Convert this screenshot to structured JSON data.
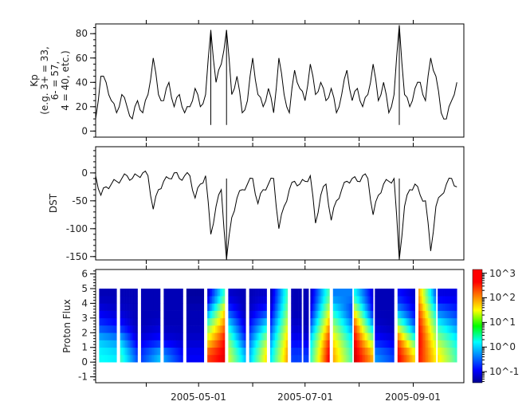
{
  "chart_data": [
    {
      "type": "line",
      "ylabel_lines": [
        "Kp",
        "(e.g. 3+ = 33,",
        "6- = 57,",
        "4 = 40, etc.)"
      ],
      "ylim": [
        -5,
        88
      ],
      "yticks": [
        0,
        20,
        40,
        60,
        80
      ],
      "x_start": "2005-03-03",
      "x_step_days": 3,
      "values": [
        10,
        45,
        40,
        25,
        15,
        30,
        20,
        10,
        25,
        15,
        30,
        60,
        30,
        25,
        40,
        20,
        30,
        15,
        20,
        35,
        20,
        30,
        83,
        40,
        55,
        83,
        30,
        45,
        15,
        25,
        60,
        30,
        20,
        35,
        15,
        60,
        30,
        15,
        50,
        35,
        25,
        55,
        30,
        40,
        25,
        35,
        15,
        30,
        50,
        25,
        35,
        20,
        30,
        55,
        25,
        40,
        15,
        30,
        87,
        30,
        20,
        35,
        40,
        25,
        60,
        45,
        15,
        10,
        25,
        40
      ]
    },
    {
      "type": "line",
      "ylabel": "DST",
      "ylim": [
        -156,
        47
      ],
      "yticks": [
        0,
        -50,
        -100,
        -150
      ],
      "x_start": "2005-03-03",
      "x_step_days": 3,
      "values": [
        -5,
        -40,
        -25,
        -20,
        -15,
        -10,
        -5,
        -10,
        -5,
        0,
        -5,
        -65,
        -30,
        -15,
        -10,
        0,
        -10,
        -5,
        -5,
        -45,
        -20,
        -5,
        -110,
        -60,
        -30,
        -155,
        -80,
        -45,
        -30,
        -20,
        -10,
        -55,
        -30,
        -20,
        -10,
        -100,
        -60,
        -30,
        -15,
        -20,
        -15,
        -5,
        -90,
        -40,
        -20,
        -85,
        -50,
        -30,
        -15,
        -10,
        -15,
        -5,
        -10,
        -75,
        -40,
        -20,
        -15,
        -10,
        -155,
        -60,
        -30,
        -20,
        -40,
        -50,
        -140,
        -60,
        -40,
        -20,
        -10,
        -25
      ]
    },
    {
      "type": "heatmap",
      "ylabel": "Proton Flux",
      "ylim": [
        -1.4,
        6.3
      ],
      "yticks": [
        -1,
        0,
        1,
        2,
        3,
        4,
        5,
        6
      ],
      "y_bands": [
        [
          0,
          1
        ],
        [
          1,
          2
        ],
        [
          2,
          3
        ],
        [
          3,
          4
        ],
        [
          4,
          5
        ]
      ],
      "colorscale": "jet",
      "z_log10_range": [
        -1.45,
        3.15
      ],
      "colorbar_ticks": [
        "10^-1",
        "10^0",
        "10^1",
        "10^2",
        "10^3"
      ],
      "colorbar_tick_values": [
        -1,
        0,
        1,
        2,
        3
      ],
      "segments": [
        {
          "start": "2005-03-05",
          "end": "2005-03-15",
          "log_flux_start": [
            0.3,
            0.0,
            -0.6,
            -1,
            -1.2
          ],
          "log_flux_end": [
            0.2,
            -0.2,
            -0.8,
            -1.1,
            -1.2
          ]
        },
        {
          "start": "2005-03-17",
          "end": "2005-03-27",
          "log_flux_start": [
            0.5,
            0,
            -0.8,
            -1.1,
            -1.2
          ],
          "log_flux_end": [
            -0.5,
            -1,
            -1.2,
            -1.2,
            -1.2
          ]
        },
        {
          "start": "2005-03-29",
          "end": "2005-04-09",
          "log_flux_start": [
            -0.6,
            -1.0,
            -1.2,
            -1.2,
            -1.2
          ],
          "log_flux_end": [
            0,
            -0.8,
            -1.1,
            -1.2,
            -1.2
          ]
        },
        {
          "start": "2005-04-11",
          "end": "2005-04-22",
          "log_flux_start": [
            -0.2,
            -1,
            -1.2,
            -1.2,
            -1.2
          ],
          "log_flux_end": [
            -0.8,
            -1.1,
            -1.2,
            -1.2,
            -1.2
          ]
        },
        {
          "start": "2005-04-24",
          "end": "2005-05-04",
          "log_flux_start": [
            -0.9,
            -1.1,
            -1.2,
            -1.2,
            -1.3
          ],
          "log_flux_end": [
            -0.9,
            -1.1,
            -1.2,
            -1.2,
            -1.3
          ]
        },
        {
          "start": "2005-05-06",
          "end": "2005-05-16",
          "log_flux_start": [
            2.3,
            1.5,
            0.8,
            -0.3,
            -1.1
          ],
          "log_flux_end": [
            2.7,
            2.5,
            2.0,
            1.5,
            0.5
          ]
        },
        {
          "start": "2005-05-18",
          "end": "2005-05-28",
          "log_flux_start": [
            1.2,
            0.8,
            0.2,
            -0.6,
            -1.1
          ],
          "log_flux_end": [
            0,
            -0.6,
            -1,
            -1.2,
            -1.2
          ]
        },
        {
          "start": "2005-05-30",
          "end": "2005-06-09",
          "log_flux_start": [
            0,
            -0.4,
            -0.8,
            -1.1,
            -1.2
          ],
          "log_flux_end": [
            1.5,
            1.0,
            0.2,
            -0.7,
            -1.1
          ]
        },
        {
          "start": "2005-06-11",
          "end": "2005-06-21",
          "log_flux_start": [
            0.2,
            -0.2,
            -0.6,
            -1,
            -1.2
          ],
          "log_flux_end": [
            1.8,
            1.6,
            1.2,
            0.8,
            0.5
          ]
        },
        {
          "start": "2005-06-23",
          "end": "2005-06-29",
          "log_flux_start": [
            -0.6,
            -0.9,
            -1.1,
            -1.2,
            -1.2
          ],
          "log_flux_end": [
            -0.6,
            -0.9,
            -1.1,
            -1.2,
            -1.2
          ]
        },
        {
          "start": "2005-06-30",
          "end": "2005-07-03",
          "log_flux_start": [
            -0.6,
            -1.0,
            -1.2,
            -1.2,
            -1.2
          ],
          "log_flux_end": [
            -0.6,
            -1.0,
            -1.2,
            -1.2,
            -1.2
          ]
        },
        {
          "start": "2005-07-04",
          "end": "2005-07-15",
          "log_flux_start": [
            0.5,
            0.2,
            -0.4,
            -0.9,
            -1.1
          ],
          "log_flux_end": [
            2.6,
            2.3,
            1.8,
            1.2,
            0.6
          ]
        },
        {
          "start": "2005-07-17",
          "end": "2005-07-28",
          "log_flux_start": [
            1.8,
            1.5,
            1.0,
            0.3,
            -0.3
          ],
          "log_flux_end": [
            0.6,
            0.3,
            -0.2,
            -0.6,
            -0.3
          ]
        },
        {
          "start": "2005-07-29",
          "end": "2005-08-09",
          "log_flux_start": [
            2.8,
            2.6,
            2.2,
            1.3,
            0.3
          ],
          "log_flux_end": [
            1.8,
            1.0,
            0,
            -0.8,
            -1.0
          ]
        },
        {
          "start": "2005-08-10",
          "end": "2005-08-21",
          "log_flux_start": [
            -0.2,
            -0.8,
            -1.1,
            -1.2,
            -1.2
          ],
          "log_flux_end": [
            -0.6,
            -1,
            -1.2,
            -1.2,
            -1.2
          ]
        },
        {
          "start": "2005-08-23",
          "end": "2005-09-02",
          "log_flux_start": [
            2.6,
            2.2,
            1.0,
            -0.2,
            -0.8
          ],
          "log_flux_end": [
            1.6,
            0.6,
            -0.4,
            -0.9,
            -1.1
          ]
        },
        {
          "start": "2005-09-04",
          "end": "2005-09-14",
          "log_flux_start": [
            2.5,
            2.6,
            2.5,
            2.2,
            1.8
          ],
          "log_flux_end": [
            1.5,
            1.2,
            0.8,
            0.3,
            -0.4
          ]
        },
        {
          "start": "2005-09-15",
          "end": "2005-09-26",
          "log_flux_start": [
            1.5,
            1.0,
            0.4,
            -0.4,
            -1.0
          ],
          "log_flux_end": [
            0.6,
            0.3,
            -0.2,
            -0.7,
            -1.0
          ]
        }
      ]
    }
  ],
  "x_axis": {
    "range": [
      "2005-03-03",
      "2005-09-30"
    ],
    "major_ticks": [
      "2005-04-01",
      "2005-05-01",
      "2005-06-01",
      "2005-07-01",
      "2005-08-01",
      "2005-09-01"
    ],
    "tick_labels": [
      "2005-05-01",
      "2005-07-01",
      "2005-09-01"
    ]
  }
}
